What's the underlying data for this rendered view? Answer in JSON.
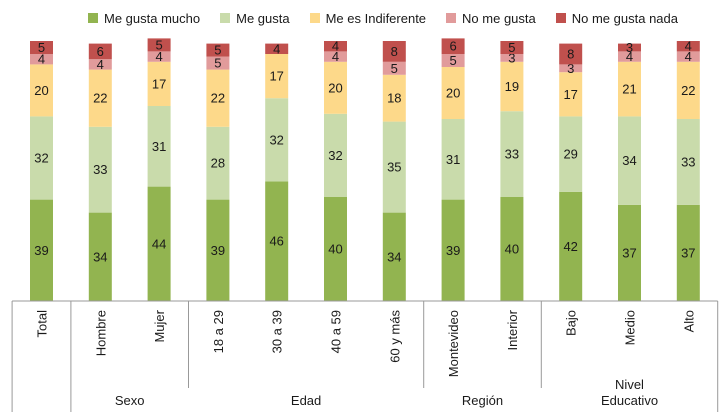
{
  "chart_data": {
    "type": "bar",
    "stacked": true,
    "categories": [
      "Total",
      "Hombre",
      "Mujer",
      "18 a 29",
      "30 a 39",
      "40 a 59",
      "60 y más",
      "Montevideo",
      "Interior",
      "Bajo",
      "Medio",
      "Alto"
    ],
    "groups": [
      {
        "label": "",
        "categories": [
          "Total"
        ]
      },
      {
        "label": "Sexo",
        "categories": [
          "Hombre",
          "Mujer"
        ]
      },
      {
        "label": "Edad",
        "categories": [
          "18 a 29",
          "30 a 39",
          "40 a 59",
          "60 y más"
        ]
      },
      {
        "label": "Región",
        "categories": [
          "Montevideo",
          "Interior"
        ]
      },
      {
        "label": "Nivel Educativo",
        "label_lines": [
          "Nivel",
          "Educativo"
        ],
        "categories": [
          "Bajo",
          "Medio",
          "Alto"
        ]
      }
    ],
    "series": [
      {
        "name": "Me gusta mucho",
        "color": "#92b450",
        "values": [
          39,
          34,
          44,
          39,
          46,
          40,
          34,
          39,
          40,
          42,
          37,
          37
        ]
      },
      {
        "name": "Me gusta",
        "color": "#c9dbab",
        "values": [
          32,
          33,
          31,
          28,
          32,
          32,
          35,
          31,
          33,
          29,
          34,
          33
        ]
      },
      {
        "name": "Me es Indiferente",
        "color": "#fdd98a",
        "values": [
          20,
          22,
          17,
          22,
          17,
          20,
          18,
          20,
          19,
          17,
          21,
          22
        ]
      },
      {
        "name": "No me gusta",
        "color": "#e19b9b",
        "values": [
          4,
          4,
          4,
          5,
          0,
          4,
          5,
          5,
          3,
          3,
          4,
          4
        ]
      },
      {
        "name": "No me gusta nada",
        "color": "#c0504d",
        "values": [
          5,
          6,
          5,
          5,
          4,
          4,
          8,
          6,
          5,
          8,
          3,
          4
        ]
      }
    ],
    "ylim": [
      0,
      100
    ],
    "legend_position": "top",
    "grid": false,
    "data_labels": true
  }
}
